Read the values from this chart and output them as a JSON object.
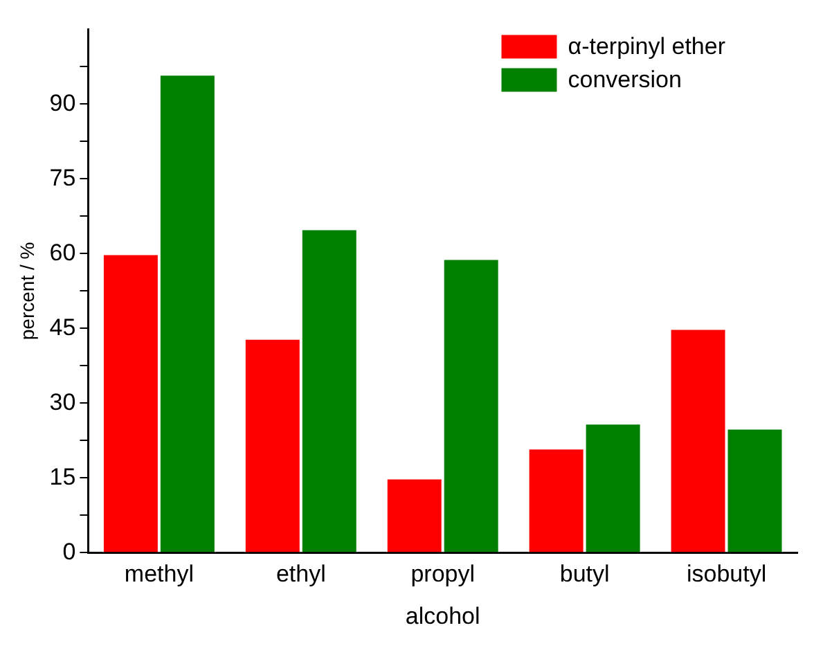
{
  "chart_data": {
    "type": "bar",
    "xlabel": "alcohol",
    "ylabel": "percent / %",
    "categories": [
      "methyl",
      "ethyl",
      "propyl",
      "butyl",
      "isobutyl"
    ],
    "series": [
      {
        "name": "α-terpinyl ether",
        "color": "#ff0000",
        "values": [
          60,
          43,
          15,
          21,
          45
        ]
      },
      {
        "name": "conversion",
        "color": "#007f00",
        "values": [
          96,
          65,
          59,
          26,
          25
        ]
      }
    ],
    "ylim": [
      0,
      105
    ],
    "yticks": [
      0,
      {
        "value": 7.5,
        "label": null
      },
      15,
      {
        "value": 22.5,
        "label": null
      },
      30,
      {
        "value": 37.5,
        "label": null
      },
      45,
      {
        "value": 52.5,
        "label": null
      },
      60,
      {
        "value": 67.5,
        "label": null
      },
      75,
      {
        "value": 82.5,
        "label": null
      },
      90,
      {
        "value": 97.5,
        "label": null
      }
    ],
    "grid": false,
    "legend": "top right"
  }
}
